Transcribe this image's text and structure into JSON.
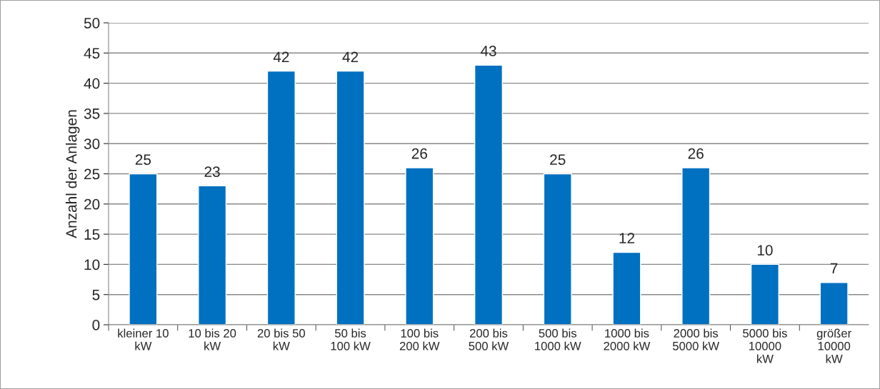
{
  "chart_data": {
    "type": "bar",
    "ylabel": "Anzahl der Anlagen",
    "categories": [
      "kleiner 10\nkW",
      "10 bis 20\nkW",
      "20 bis 50\nkW",
      "50 bis\n100 kW",
      "100 bis\n200 kW",
      "200 bis\n500 kW",
      "500 bis\n1000 kW",
      "1000 bis\n2000 kW",
      "2000 bis\n5000 kW",
      "5000 bis\n10000\nkW",
      "größer\n10000\nkW"
    ],
    "values": [
      25,
      23,
      42,
      42,
      26,
      43,
      25,
      12,
      26,
      10,
      7
    ],
    "color": "#0070c0",
    "ylim": [
      0,
      50
    ],
    "yticks": [
      0,
      5,
      10,
      15,
      20,
      25,
      30,
      35,
      40,
      45,
      50
    ],
    "grid": "y",
    "data_labels": true
  }
}
